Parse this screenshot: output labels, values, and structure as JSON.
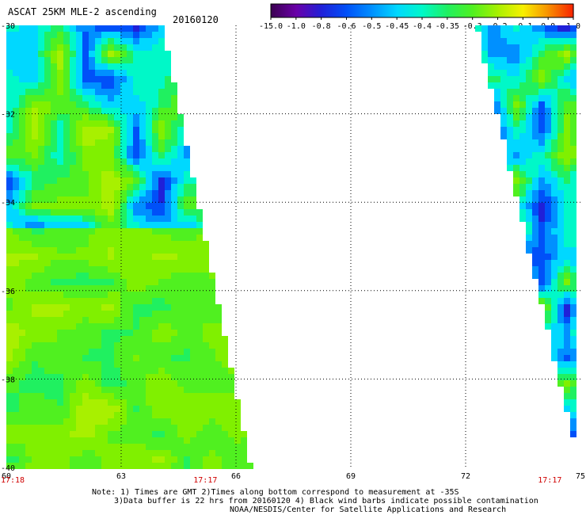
{
  "header": {
    "title": "ASCAT 25KM MLE-2 ascending",
    "date": "20160120"
  },
  "colorbar": {
    "tick_labels": [
      "-15.0",
      "-1.0",
      "-0.8",
      "-0.6",
      "-0.5",
      "-0.45",
      "-0.4",
      "-0.35",
      "-0.3",
      "-0.2",
      "-0.1",
      "0.0",
      "1.0"
    ],
    "colors": [
      "#3a0050",
      "#6a00a8",
      "#2020d8",
      "#0050f8",
      "#0090ff",
      "#00d8ff",
      "#00f8c8",
      "#20f060",
      "#50f020",
      "#a8f000",
      "#f8f000",
      "#f89000",
      "#f82000"
    ]
  },
  "notes": {
    "line1": "Note: 1) Times are GMT 2)Times along bottom correspond to measurement at -35S",
    "line2": "3)Data buffer is 22 hrs from 20160120 4) Black wind barbs indicate possible contamination",
    "line3": "NOAA/NESDIS/Center for Satellite Applications and Research"
  },
  "chart_data": {
    "type": "heatmap",
    "title": "ASCAT 25KM MLE-2 ascending 20160120",
    "x_ticks": [
      "60",
      "63",
      "66",
      "69",
      "72",
      "75"
    ],
    "y_ticks": [
      "-30",
      "-32",
      "-34",
      "-36",
      "-38",
      "-40"
    ],
    "xlim": [
      60,
      75
    ],
    "ylim": [
      -40,
      -30
    ],
    "grid": true,
    "time_labels": [
      {
        "x": 60,
        "text": "17:18"
      },
      {
        "x": 65.2,
        "text": "17:17"
      },
      {
        "x": 74.2,
        "text": "17:17"
      }
    ],
    "swaths": [
      {
        "name": "west",
        "edge_west_lon_at_top": 60,
        "edge_east_lon_at_top": 64.1,
        "edge_east_lon_at_bottom": 66.4
      },
      {
        "name": "east",
        "edge_west_lon_at_top": 72.3,
        "edge_west_lon_at_bottom": 75,
        "edge_east_lon": 75
      }
    ],
    "value_range": [
      -15.0,
      1.0
    ],
    "dominant_value": -0.3
  }
}
